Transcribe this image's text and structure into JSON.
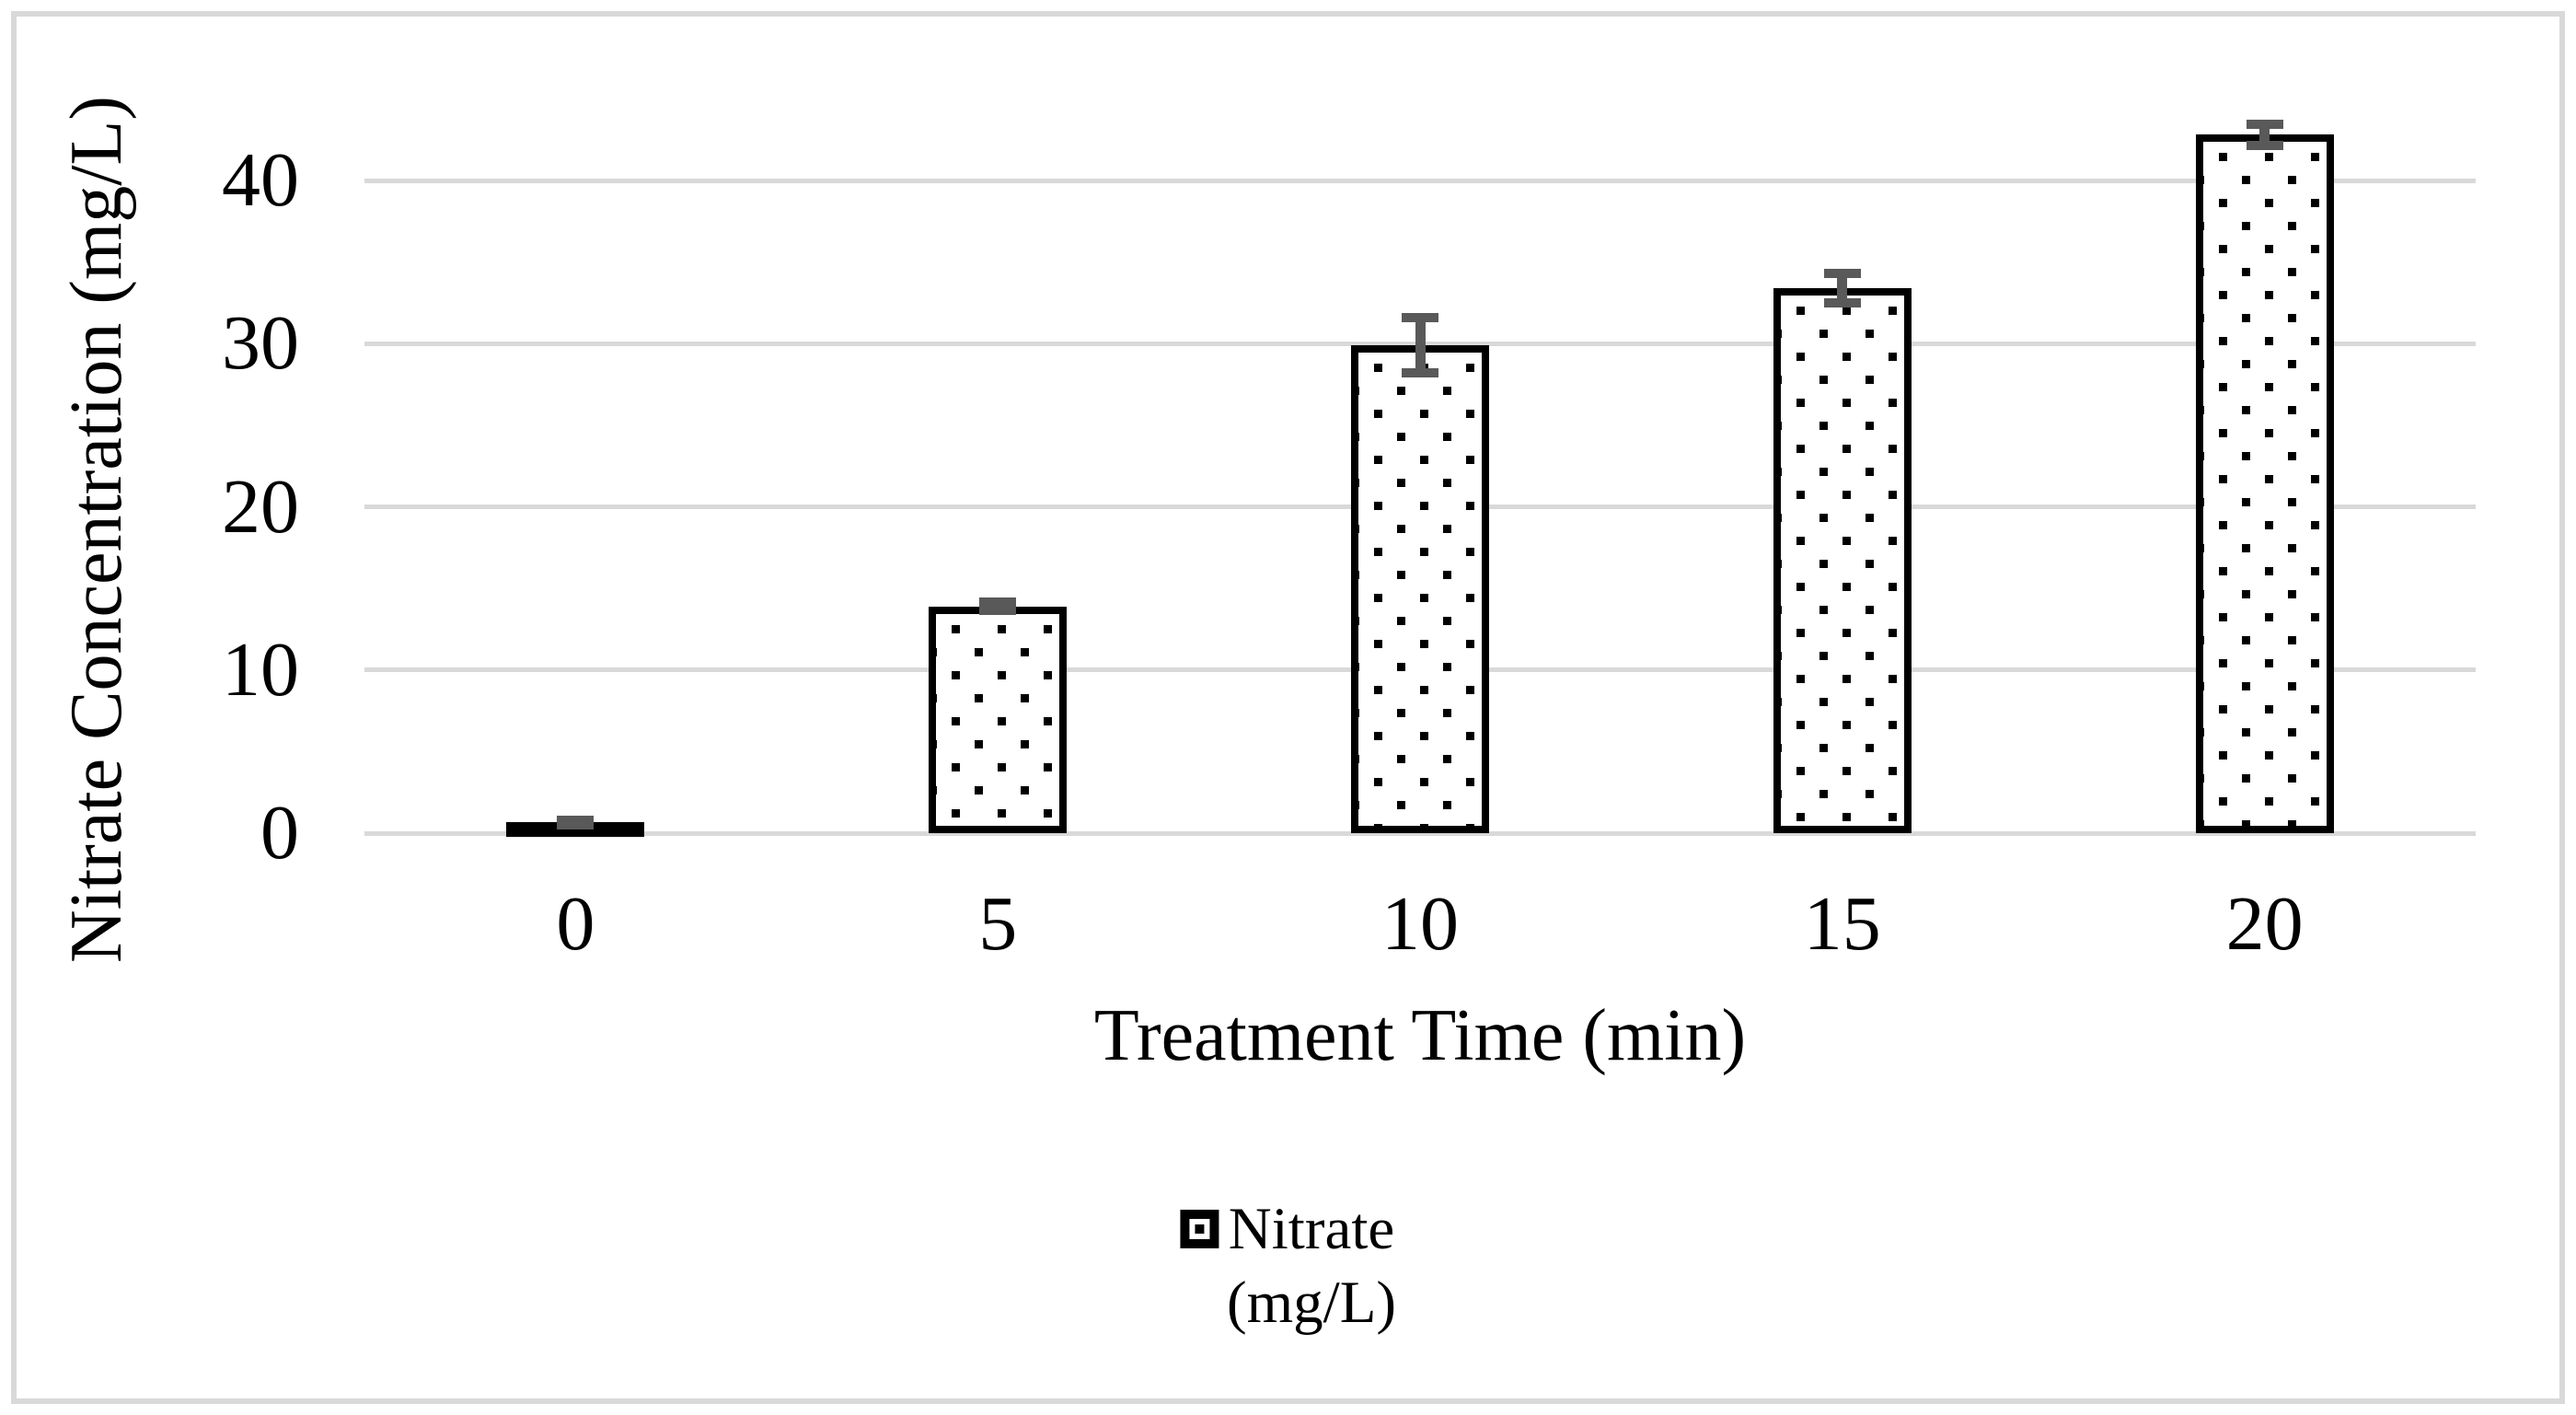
{
  "chart_data": {
    "type": "bar",
    "title": "",
    "xlabel": "Treatment Time (min)",
    "ylabel": "Nitrate Concentration (mg/L)",
    "categories": [
      "0",
      "5",
      "10",
      "15",
      "20"
    ],
    "series": [
      {
        "name": "Nitrate (mg/L)",
        "values": [
          0.65,
          13.9,
          29.9,
          33.4,
          42.8
        ],
        "errors": [
          0.15,
          0.25,
          1.7,
          0.9,
          0.65
        ]
      }
    ],
    "ylim": [
      0,
      45
    ],
    "yticks": [
      0,
      10,
      20,
      30,
      40
    ],
    "grid": true,
    "bar_pattern": "dotted",
    "legend_position": "bottom-center",
    "legend_label_lines": [
      "Nitrate",
      "(mg/L)"
    ],
    "colors": {
      "bar_fill": "#ffffff",
      "bar_pattern_dot": "#000000",
      "bar_border": "#000000",
      "gridline": "#d9d9d9",
      "error_bar": "#595959",
      "figure_border": "#d9d9d9",
      "text": "#000000"
    }
  }
}
